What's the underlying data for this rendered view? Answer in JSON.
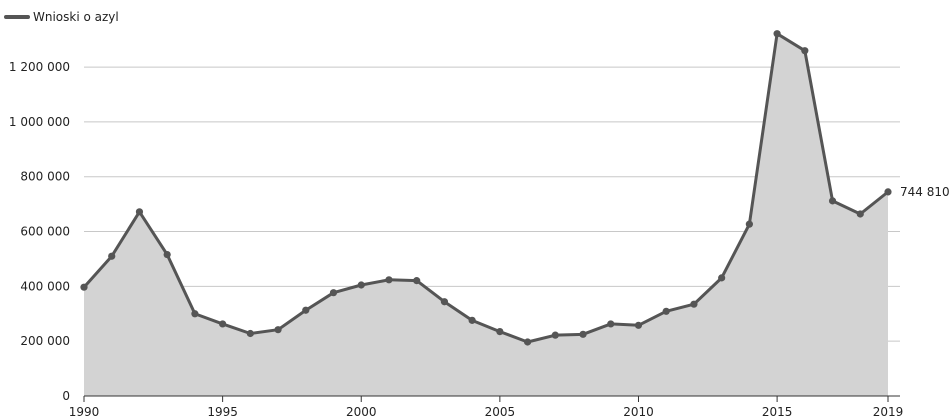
{
  "chart_data": {
    "type": "area",
    "title": "",
    "xlabel": "",
    "ylabel": "",
    "grid": true,
    "legend": {
      "placement": "top-left",
      "entries": [
        "Wnioski o azyl"
      ]
    },
    "x_ticks": [
      "1990",
      "1995",
      "2000",
      "2005",
      "2010",
      "2015",
      "2019"
    ],
    "y_ticks": [
      "0",
      "200 000",
      "400 000",
      "600 000",
      "800 000",
      "1 000 000",
      "1 200 000"
    ],
    "xlim": [
      1990,
      2019
    ],
    "ylim": [
      0,
      1350000
    ],
    "series": [
      {
        "name": "Wnioski o azyl",
        "color": "#555555",
        "fill": "#d3d3d3",
        "x": [
          1990,
          1991,
          1992,
          1993,
          1994,
          1995,
          1996,
          1997,
          1998,
          1999,
          2000,
          2001,
          2002,
          2003,
          2004,
          2005,
          2006,
          2007,
          2008,
          2009,
          2010,
          2011,
          2012,
          2013,
          2014,
          2015,
          2016,
          2017,
          2018,
          2019
        ],
        "values": [
          397000,
          510000,
          672000,
          516000,
          300000,
          263000,
          228000,
          242000,
          313000,
          377000,
          405000,
          424000,
          421000,
          344000,
          276000,
          235000,
          197000,
          222000,
          225000,
          263000,
          258000,
          309000,
          335000,
          431000,
          627000,
          1322000,
          1260000,
          712000,
          664000,
          744810
        ]
      }
    ],
    "annotations": [
      {
        "x": 2019,
        "y": 744810,
        "text": "744 810"
      }
    ]
  }
}
